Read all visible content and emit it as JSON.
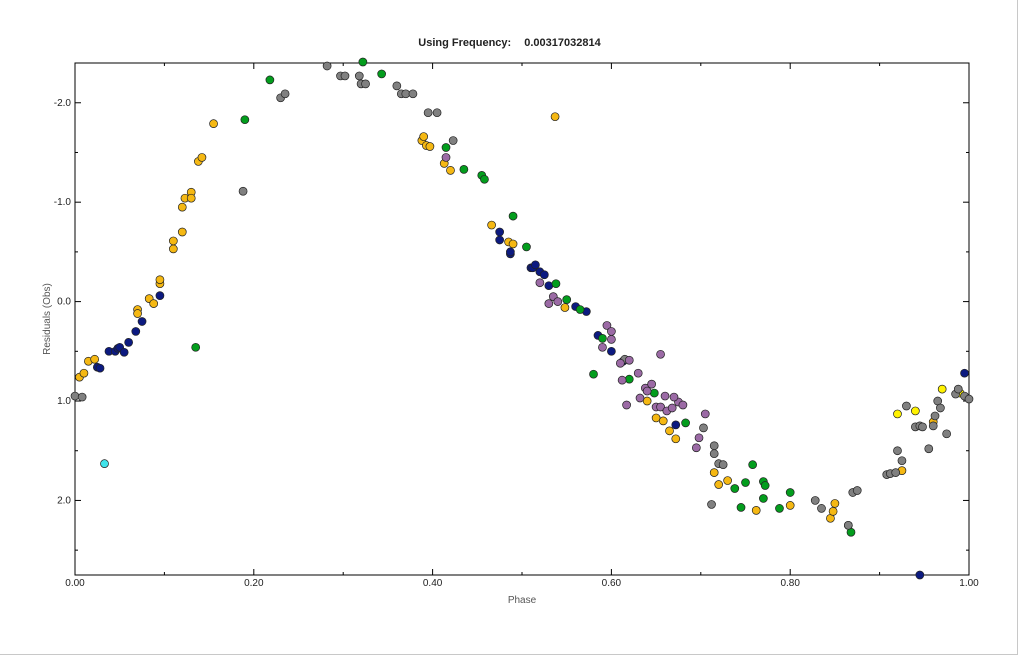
{
  "chart_title": {
    "label": "Using Frequency:",
    "value": "0.00317032814"
  },
  "chart_data": {
    "type": "scatter",
    "xlabel": "Phase",
    "ylabel": "Residuals (Obs)",
    "xlim": [
      0.0,
      1.0
    ],
    "ylim": [
      2.75,
      -2.4
    ],
    "y_inverted": true,
    "grid": false,
    "x_ticks": [
      "0.00",
      "0.20",
      "0.40",
      "0.60",
      "0.80",
      "1.00"
    ],
    "y_ticks": [
      "-2.0",
      "-1.0",
      "0.0",
      "1.0",
      "2.0"
    ],
    "x_tick_values": [
      0.0,
      0.2,
      0.4,
      0.6,
      0.8,
      1.0
    ],
    "y_tick_values": [
      -2.0,
      -1.0,
      0.0,
      1.0,
      2.0
    ],
    "series": [
      {
        "color": "#f5b813",
        "points": [
          [
            0.005,
            0.76
          ],
          [
            0.01,
            0.72
          ],
          [
            0.015,
            0.6
          ],
          [
            0.022,
            0.58
          ],
          [
            0.07,
            0.08
          ],
          [
            0.07,
            0.12
          ],
          [
            0.083,
            -0.03
          ],
          [
            0.088,
            0.02
          ],
          [
            0.095,
            -0.18
          ],
          [
            0.095,
            -0.22
          ],
          [
            0.11,
            -0.53
          ],
          [
            0.11,
            -0.61
          ],
          [
            0.12,
            -0.7
          ],
          [
            0.12,
            -0.95
          ],
          [
            0.123,
            -1.04
          ],
          [
            0.13,
            -1.1
          ],
          [
            0.13,
            -1.04
          ],
          [
            0.138,
            -1.41
          ],
          [
            0.142,
            -1.45
          ],
          [
            0.155,
            -1.79
          ],
          [
            0.388,
            -1.62
          ],
          [
            0.39,
            -1.66
          ],
          [
            0.393,
            -1.57
          ],
          [
            0.397,
            -1.56
          ],
          [
            0.413,
            -1.39
          ],
          [
            0.42,
            -1.32
          ],
          [
            0.466,
            -0.77
          ],
          [
            0.485,
            -0.6
          ],
          [
            0.49,
            -0.58
          ],
          [
            0.537,
            -1.86
          ],
          [
            0.548,
            0.06
          ],
          [
            0.64,
            1.0
          ],
          [
            0.65,
            1.17
          ],
          [
            0.658,
            1.2
          ],
          [
            0.665,
            1.3
          ],
          [
            0.672,
            1.38
          ],
          [
            0.715,
            1.72
          ],
          [
            0.72,
            1.84
          ],
          [
            0.73,
            1.8
          ],
          [
            0.762,
            2.1
          ],
          [
            0.8,
            2.05
          ],
          [
            0.845,
            2.18
          ],
          [
            0.848,
            2.11
          ],
          [
            0.85,
            2.03
          ],
          [
            0.925,
            1.7
          ],
          [
            0.96,
            1.21
          ]
        ]
      },
      {
        "color": "#fff200",
        "points": [
          [
            0.92,
            1.13
          ],
          [
            0.94,
            1.1
          ],
          [
            0.97,
            0.88
          ],
          [
            0.99,
            0.92
          ]
        ]
      },
      {
        "color": "#0c1a80",
        "points": [
          [
            0.025,
            0.66
          ],
          [
            0.028,
            0.67
          ],
          [
            0.038,
            0.5
          ],
          [
            0.045,
            0.5
          ],
          [
            0.048,
            0.47
          ],
          [
            0.05,
            0.46
          ],
          [
            0.055,
            0.51
          ],
          [
            0.06,
            0.41
          ],
          [
            0.068,
            0.3
          ],
          [
            0.075,
            0.2
          ],
          [
            0.095,
            -0.06
          ],
          [
            0.475,
            -0.7
          ],
          [
            0.475,
            -0.62
          ],
          [
            0.487,
            -0.48
          ],
          [
            0.487,
            -0.5
          ],
          [
            0.51,
            -0.34
          ],
          [
            0.512,
            -0.34
          ],
          [
            0.515,
            -0.37
          ],
          [
            0.52,
            -0.3
          ],
          [
            0.525,
            -0.27
          ],
          [
            0.53,
            -0.16
          ],
          [
            0.56,
            0.05
          ],
          [
            0.572,
            0.1
          ],
          [
            0.585,
            0.34
          ],
          [
            0.6,
            0.5
          ],
          [
            0.613,
            0.6
          ],
          [
            0.672,
            1.24
          ],
          [
            0.945,
            2.75
          ],
          [
            0.995,
            0.72
          ]
        ]
      },
      {
        "color": "#039d1d",
        "points": [
          [
            0.135,
            0.46
          ],
          [
            0.19,
            -1.83
          ],
          [
            0.218,
            -2.23
          ],
          [
            0.322,
            -2.41
          ],
          [
            0.343,
            -2.29
          ],
          [
            0.415,
            -1.55
          ],
          [
            0.435,
            -1.33
          ],
          [
            0.455,
            -1.27
          ],
          [
            0.458,
            -1.23
          ],
          [
            0.49,
            -0.86
          ],
          [
            0.505,
            -0.55
          ],
          [
            0.538,
            -0.18
          ],
          [
            0.55,
            -0.02
          ],
          [
            0.565,
            0.08
          ],
          [
            0.58,
            0.73
          ],
          [
            0.59,
            0.37
          ],
          [
            0.62,
            0.78
          ],
          [
            0.648,
            0.92
          ],
          [
            0.683,
            1.22
          ],
          [
            0.738,
            1.88
          ],
          [
            0.745,
            2.07
          ],
          [
            0.75,
            1.82
          ],
          [
            0.758,
            1.64
          ],
          [
            0.77,
            1.98
          ],
          [
            0.77,
            1.81
          ],
          [
            0.772,
            1.85
          ],
          [
            0.788,
            2.08
          ],
          [
            0.8,
            1.92
          ],
          [
            0.865,
            2.25
          ],
          [
            0.868,
            2.32
          ]
        ]
      },
      {
        "color": "#808080",
        "points": [
          [
            0.0,
            0.95
          ],
          [
            0.008,
            0.96
          ],
          [
            0.188,
            -1.11
          ],
          [
            0.23,
            -2.05
          ],
          [
            0.235,
            -2.09
          ],
          [
            0.282,
            -2.37
          ],
          [
            0.297,
            -2.27
          ],
          [
            0.302,
            -2.27
          ],
          [
            0.318,
            -2.27
          ],
          [
            0.32,
            -2.19
          ],
          [
            0.325,
            -2.19
          ],
          [
            0.36,
            -2.17
          ],
          [
            0.365,
            -2.09
          ],
          [
            0.37,
            -2.09
          ],
          [
            0.378,
            -2.09
          ],
          [
            0.395,
            -1.9
          ],
          [
            0.405,
            -1.9
          ],
          [
            0.423,
            -1.62
          ],
          [
            0.615,
            0.58
          ],
          [
            0.703,
            1.27
          ],
          [
            0.712,
            2.04
          ],
          [
            0.715,
            1.45
          ],
          [
            0.715,
            1.53
          ],
          [
            0.72,
            1.63
          ],
          [
            0.725,
            1.64
          ],
          [
            0.828,
            2.0
          ],
          [
            0.835,
            2.08
          ],
          [
            0.865,
            2.25
          ],
          [
            0.87,
            1.92
          ],
          [
            0.875,
            1.9
          ],
          [
            0.908,
            1.74
          ],
          [
            0.912,
            1.73
          ],
          [
            0.918,
            1.72
          ],
          [
            0.92,
            1.5
          ],
          [
            0.925,
            1.6
          ],
          [
            0.93,
            1.05
          ],
          [
            0.94,
            1.26
          ],
          [
            0.945,
            1.25
          ],
          [
            0.948,
            1.26
          ],
          [
            0.955,
            1.48
          ],
          [
            0.96,
            1.25
          ],
          [
            0.962,
            1.15
          ],
          [
            0.965,
            1.0
          ],
          [
            0.968,
            1.07
          ],
          [
            0.975,
            1.33
          ],
          [
            0.985,
            0.93
          ],
          [
            0.988,
            0.88
          ],
          [
            0.995,
            0.95
          ],
          [
            1.0,
            0.98
          ]
        ]
      },
      {
        "color": "#9b6aa5",
        "points": [
          [
            0.415,
            -1.45
          ],
          [
            0.52,
            -0.19
          ],
          [
            0.53,
            0.02
          ],
          [
            0.535,
            -0.05
          ],
          [
            0.54,
            0.0
          ],
          [
            0.595,
            0.24
          ],
          [
            0.6,
            0.3
          ],
          [
            0.612,
            0.79
          ],
          [
            0.62,
            0.59
          ],
          [
            0.632,
            0.97
          ],
          [
            0.638,
            0.87
          ],
          [
            0.645,
            0.83
          ],
          [
            0.65,
            1.06
          ],
          [
            0.655,
            1.06
          ],
          [
            0.662,
            1.1
          ],
          [
            0.668,
            1.07
          ],
          [
            0.675,
            1.01
          ],
          [
            0.68,
            1.04
          ],
          [
            0.695,
            1.47
          ],
          [
            0.698,
            1.37
          ],
          [
            0.705,
            1.13
          ],
          [
            0.617,
            1.04
          ],
          [
            0.59,
            0.46
          ],
          [
            0.61,
            0.62
          ],
          [
            0.63,
            0.72
          ],
          [
            0.64,
            0.9
          ],
          [
            0.6,
            0.38
          ],
          [
            0.655,
            0.53
          ],
          [
            0.66,
            0.95
          ],
          [
            0.67,
            0.96
          ]
        ]
      },
      {
        "color": "#3fe3ea",
        "points": [
          [
            0.033,
            1.63
          ]
        ]
      }
    ]
  }
}
